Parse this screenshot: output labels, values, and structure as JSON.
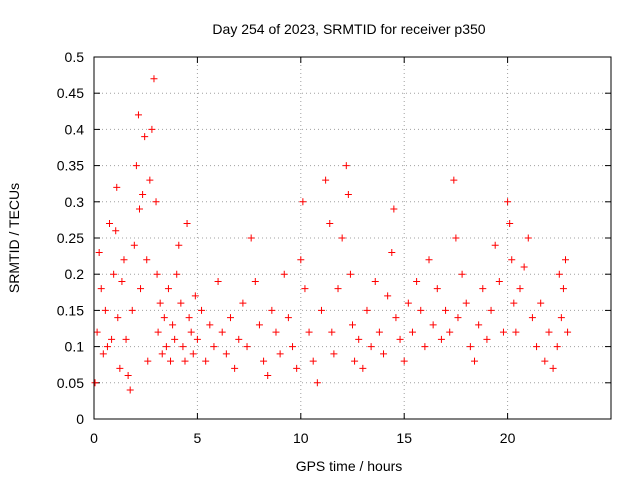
{
  "chart_data": {
    "type": "scatter",
    "title": "Day 254 of 2023, SRMTID for receiver p350",
    "xlabel": "GPS time / hours",
    "ylabel": "SRMTID / TECUs",
    "xlim": [
      0,
      25
    ],
    "ylim": [
      0,
      0.5
    ],
    "grid": true,
    "marker": "+",
    "marker_color": "#ff0000",
    "x_ticks": [
      0,
      5,
      10,
      15,
      20
    ],
    "x_tick_labels": [
      "0",
      "5",
      "10",
      "15",
      "20"
    ],
    "y_ticks": [
      0,
      0.05,
      0.1,
      0.15,
      0.2,
      0.25,
      0.3,
      0.35,
      0.4,
      0.45,
      0.5
    ],
    "y_tick_labels": [
      "0",
      "0.05",
      "0.1",
      "0.15",
      "0.2",
      "0.25",
      "0.3",
      "0.35",
      "0.4",
      "0.45",
      "0.5"
    ],
    "series": [
      {
        "name": "SRMTID",
        "x": [
          0.05,
          0.15,
          0.25,
          0.35,
          0.45,
          0.55,
          0.65,
          0.75,
          0.85,
          0.95,
          1.05,
          1.1,
          1.15,
          1.25,
          1.35,
          1.45,
          1.55,
          1.65,
          1.75,
          1.85,
          1.95,
          2.05,
          2.15,
          2.2,
          2.25,
          2.35,
          2.45,
          2.55,
          2.6,
          2.7,
          2.8,
          2.9,
          3.0,
          3.05,
          3.1,
          3.2,
          3.3,
          3.4,
          3.5,
          3.6,
          3.7,
          3.8,
          3.9,
          4.0,
          4.1,
          4.2,
          4.3,
          4.4,
          4.5,
          4.6,
          4.7,
          4.8,
          4.9,
          5.0,
          5.2,
          5.4,
          5.6,
          5.8,
          6.0,
          6.2,
          6.4,
          6.6,
          6.8,
          7.0,
          7.2,
          7.4,
          7.6,
          7.8,
          8.0,
          8.2,
          8.4,
          8.6,
          8.8,
          9.0,
          9.2,
          9.4,
          9.6,
          9.8,
          10.0,
          10.1,
          10.2,
          10.4,
          10.6,
          10.8,
          11.0,
          11.2,
          11.4,
          11.5,
          11.6,
          11.8,
          12.0,
          12.2,
          12.3,
          12.4,
          12.5,
          12.6,
          12.8,
          13.0,
          13.2,
          13.4,
          13.6,
          13.8,
          14.0,
          14.2,
          14.4,
          14.5,
          14.6,
          14.8,
          15.0,
          15.2,
          15.4,
          15.6,
          15.8,
          16.0,
          16.2,
          16.4,
          16.6,
          16.8,
          17.0,
          17.2,
          17.4,
          17.5,
          17.6,
          17.8,
          18.0,
          18.2,
          18.4,
          18.6,
          18.8,
          19.0,
          19.2,
          19.4,
          19.6,
          19.8,
          20.0,
          20.1,
          20.2,
          20.3,
          20.4,
          20.6,
          20.8,
          21.0,
          21.2,
          21.4,
          21.6,
          21.8,
          22.0,
          22.2,
          22.4,
          22.5,
          22.6,
          22.7,
          22.8,
          22.9
        ],
        "y": [
          0.05,
          0.12,
          0.23,
          0.18,
          0.09,
          0.15,
          0.1,
          0.27,
          0.11,
          0.2,
          0.26,
          0.32,
          0.14,
          0.07,
          0.19,
          0.22,
          0.11,
          0.06,
          0.04,
          0.15,
          0.24,
          0.35,
          0.42,
          0.29,
          0.18,
          0.31,
          0.39,
          0.22,
          0.08,
          0.33,
          0.4,
          0.47,
          0.3,
          0.2,
          0.12,
          0.16,
          0.09,
          0.14,
          0.1,
          0.18,
          0.08,
          0.13,
          0.11,
          0.2,
          0.24,
          0.16,
          0.1,
          0.08,
          0.27,
          0.14,
          0.12,
          0.09,
          0.17,
          0.11,
          0.15,
          0.08,
          0.13,
          0.1,
          0.19,
          0.12,
          0.09,
          0.14,
          0.07,
          0.11,
          0.16,
          0.1,
          0.25,
          0.19,
          0.13,
          0.08,
          0.06,
          0.15,
          0.12,
          0.09,
          0.2,
          0.14,
          0.1,
          0.07,
          0.22,
          0.3,
          0.18,
          0.12,
          0.08,
          0.05,
          0.15,
          0.33,
          0.27,
          0.12,
          0.09,
          0.18,
          0.25,
          0.35,
          0.31,
          0.2,
          0.13,
          0.08,
          0.11,
          0.07,
          0.15,
          0.1,
          0.19,
          0.12,
          0.09,
          0.17,
          0.23,
          0.29,
          0.14,
          0.11,
          0.08,
          0.16,
          0.12,
          0.19,
          0.15,
          0.1,
          0.22,
          0.13,
          0.18,
          0.11,
          0.15,
          0.12,
          0.33,
          0.25,
          0.14,
          0.2,
          0.16,
          0.1,
          0.08,
          0.13,
          0.18,
          0.11,
          0.15,
          0.24,
          0.19,
          0.12,
          0.3,
          0.27,
          0.22,
          0.16,
          0.12,
          0.18,
          0.21,
          0.25,
          0.14,
          0.1,
          0.16,
          0.08,
          0.12,
          0.07,
          0.1,
          0.2,
          0.14,
          0.18,
          0.22,
          0.12
        ]
      }
    ]
  }
}
